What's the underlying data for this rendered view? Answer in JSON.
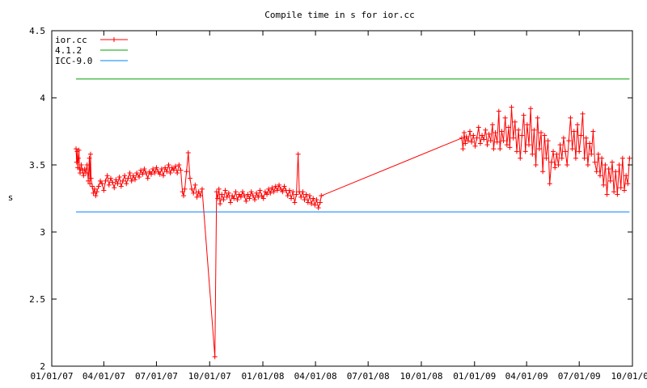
{
  "chart_data": {
    "type": "line",
    "title": "Compile time in s for ior.cc",
    "xlabel": "",
    "ylabel": "s",
    "ylim": [
      2,
      4.5
    ],
    "xlim": [
      "2007-01-01",
      "2009-10-01"
    ],
    "yticks": [
      "2",
      "2.5",
      "3",
      "3.5",
      "4",
      "4.5"
    ],
    "xticks": [
      {
        "date": "2007-01-01",
        "label": "01/01/07"
      },
      {
        "date": "2007-04-01",
        "label": "04/01/07"
      },
      {
        "date": "2007-07-01",
        "label": "07/01/07"
      },
      {
        "date": "2007-10-01",
        "label": "10/01/07"
      },
      {
        "date": "2008-01-01",
        "label": "01/01/08"
      },
      {
        "date": "2008-04-01",
        "label": "04/01/08"
      },
      {
        "date": "2008-07-01",
        "label": "07/01/08"
      },
      {
        "date": "2008-10-01",
        "label": "10/01/08"
      },
      {
        "date": "2009-01-01",
        "label": "01/01/09"
      },
      {
        "date": "2009-04-01",
        "label": "04/01/09"
      },
      {
        "date": "2009-07-01",
        "label": "07/01/09"
      },
      {
        "date": "2009-10-01",
        "label": "10/01/09"
      }
    ],
    "grid": false,
    "legend": "top-left",
    "series": [
      {
        "name": "ior.cc",
        "color": "#ff0000",
        "marker": "plus",
        "points": [
          [
            "2007-02-12",
            3.62
          ],
          [
            "2007-02-13",
            3.52
          ],
          [
            "2007-02-14",
            3.6
          ],
          [
            "2007-02-15",
            3.48
          ],
          [
            "2007-02-16",
            3.55
          ],
          [
            "2007-02-17",
            3.61
          ],
          [
            "2007-02-18",
            3.47
          ],
          [
            "2007-02-19",
            3.44
          ],
          [
            "2007-02-21",
            3.5
          ],
          [
            "2007-02-23",
            3.46
          ],
          [
            "2007-02-25",
            3.42
          ],
          [
            "2007-02-27",
            3.47
          ],
          [
            "2007-03-01",
            3.44
          ],
          [
            "2007-03-03",
            3.5
          ],
          [
            "2007-03-05",
            3.38
          ],
          [
            "2007-03-07",
            3.55
          ],
          [
            "2007-03-08",
            3.36
          ],
          [
            "2007-03-09",
            3.58
          ],
          [
            "2007-03-10",
            3.4
          ],
          [
            "2007-03-12",
            3.34
          ],
          [
            "2007-03-14",
            3.29
          ],
          [
            "2007-03-16",
            3.32
          ],
          [
            "2007-03-18",
            3.27
          ],
          [
            "2007-03-20",
            3.3
          ],
          [
            "2007-03-23",
            3.34
          ],
          [
            "2007-03-26",
            3.38
          ],
          [
            "2007-03-29",
            3.36
          ],
          [
            "2007-04-01",
            3.31
          ],
          [
            "2007-04-04",
            3.38
          ],
          [
            "2007-04-07",
            3.42
          ],
          [
            "2007-04-10",
            3.35
          ],
          [
            "2007-04-13",
            3.4
          ],
          [
            "2007-04-16",
            3.37
          ],
          [
            "2007-04-19",
            3.33
          ],
          [
            "2007-04-22",
            3.39
          ],
          [
            "2007-04-25",
            3.36
          ],
          [
            "2007-04-28",
            3.41
          ],
          [
            "2007-05-01",
            3.34
          ],
          [
            "2007-05-04",
            3.38
          ],
          [
            "2007-05-07",
            3.42
          ],
          [
            "2007-05-10",
            3.36
          ],
          [
            "2007-05-13",
            3.4
          ],
          [
            "2007-05-16",
            3.44
          ],
          [
            "2007-05-19",
            3.38
          ],
          [
            "2007-05-22",
            3.42
          ],
          [
            "2007-05-25",
            3.39
          ],
          [
            "2007-05-28",
            3.44
          ],
          [
            "2007-06-01",
            3.41
          ],
          [
            "2007-06-04",
            3.46
          ],
          [
            "2007-06-07",
            3.43
          ],
          [
            "2007-06-10",
            3.47
          ],
          [
            "2007-06-13",
            3.44
          ],
          [
            "2007-06-16",
            3.4
          ],
          [
            "2007-06-19",
            3.45
          ],
          [
            "2007-06-22",
            3.43
          ],
          [
            "2007-06-25",
            3.47
          ],
          [
            "2007-06-28",
            3.44
          ],
          [
            "2007-07-01",
            3.48
          ],
          [
            "2007-07-04",
            3.45
          ],
          [
            "2007-07-07",
            3.43
          ],
          [
            "2007-07-10",
            3.47
          ],
          [
            "2007-07-13",
            3.42
          ],
          [
            "2007-07-16",
            3.48
          ],
          [
            "2007-07-19",
            3.45
          ],
          [
            "2007-07-22",
            3.5
          ],
          [
            "2007-07-25",
            3.44
          ],
          [
            "2007-07-28",
            3.48
          ],
          [
            "2007-07-31",
            3.46
          ],
          [
            "2007-08-03",
            3.49
          ],
          [
            "2007-08-06",
            3.44
          ],
          [
            "2007-08-09",
            3.5
          ],
          [
            "2007-08-12",
            3.46
          ],
          [
            "2007-08-15",
            3.3
          ],
          [
            "2007-08-17",
            3.27
          ],
          [
            "2007-08-19",
            3.32
          ],
          [
            "2007-08-22",
            3.45
          ],
          [
            "2007-08-25",
            3.59
          ],
          [
            "2007-08-28",
            3.4
          ],
          [
            "2007-08-31",
            3.32
          ],
          [
            "2007-09-03",
            3.29
          ],
          [
            "2007-09-06",
            3.35
          ],
          [
            "2007-09-09",
            3.26
          ],
          [
            "2007-09-12",
            3.3
          ],
          [
            "2007-09-15",
            3.27
          ],
          [
            "2007-09-18",
            3.32
          ],
          [
            "2007-10-10",
            2.07
          ],
          [
            "2007-10-13",
            3.3
          ],
          [
            "2007-10-15",
            3.25
          ],
          [
            "2007-10-17",
            3.32
          ],
          [
            "2007-10-19",
            3.21
          ],
          [
            "2007-10-22",
            3.28
          ],
          [
            "2007-10-25",
            3.24
          ],
          [
            "2007-10-28",
            3.31
          ],
          [
            "2007-10-31",
            3.26
          ],
          [
            "2007-11-03",
            3.29
          ],
          [
            "2007-11-06",
            3.22
          ],
          [
            "2007-11-09",
            3.27
          ],
          [
            "2007-11-12",
            3.25
          ],
          [
            "2007-11-15",
            3.3
          ],
          [
            "2007-11-18",
            3.24
          ],
          [
            "2007-11-21",
            3.28
          ],
          [
            "2007-11-24",
            3.26
          ],
          [
            "2007-11-27",
            3.3
          ],
          [
            "2007-11-30",
            3.27
          ],
          [
            "2007-12-03",
            3.23
          ],
          [
            "2007-12-06",
            3.28
          ],
          [
            "2007-12-09",
            3.25
          ],
          [
            "2007-12-12",
            3.3
          ],
          [
            "2007-12-15",
            3.27
          ],
          [
            "2007-12-18",
            3.24
          ],
          [
            "2007-12-21",
            3.29
          ],
          [
            "2007-12-24",
            3.26
          ],
          [
            "2007-12-27",
            3.31
          ],
          [
            "2007-12-30",
            3.27
          ],
          [
            "2008-01-02",
            3.25
          ],
          [
            "2008-01-05",
            3.3
          ],
          [
            "2008-01-08",
            3.28
          ],
          [
            "2008-01-11",
            3.32
          ],
          [
            "2008-01-14",
            3.29
          ],
          [
            "2008-01-17",
            3.33
          ],
          [
            "2008-01-20",
            3.3
          ],
          [
            "2008-01-23",
            3.34
          ],
          [
            "2008-01-26",
            3.31
          ],
          [
            "2008-01-29",
            3.35
          ],
          [
            "2008-02-01",
            3.32
          ],
          [
            "2008-02-04",
            3.3
          ],
          [
            "2008-02-07",
            3.34
          ],
          [
            "2008-02-10",
            3.31
          ],
          [
            "2008-02-13",
            3.27
          ],
          [
            "2008-02-16",
            3.31
          ],
          [
            "2008-02-19",
            3.25
          ],
          [
            "2008-02-22",
            3.3
          ],
          [
            "2008-02-25",
            3.22
          ],
          [
            "2008-02-28",
            3.28
          ],
          [
            "2008-03-02",
            3.58
          ],
          [
            "2008-03-04",
            3.3
          ],
          [
            "2008-03-07",
            3.26
          ],
          [
            "2008-03-10",
            3.3
          ],
          [
            "2008-03-13",
            3.24
          ],
          [
            "2008-03-16",
            3.28
          ],
          [
            "2008-03-19",
            3.22
          ],
          [
            "2008-03-22",
            3.27
          ],
          [
            "2008-03-25",
            3.21
          ],
          [
            "2008-03-28",
            3.25
          ],
          [
            "2008-03-31",
            3.2
          ],
          [
            "2008-04-03",
            3.24
          ],
          [
            "2008-04-06",
            3.18
          ],
          [
            "2008-04-09",
            3.22
          ],
          [
            "2008-04-11",
            3.27
          ],
          [
            "2008-12-10",
            3.7
          ],
          [
            "2008-12-12",
            3.62
          ],
          [
            "2008-12-14",
            3.74
          ],
          [
            "2008-12-16",
            3.66
          ],
          [
            "2008-12-18",
            3.71
          ],
          [
            "2008-12-21",
            3.68
          ],
          [
            "2008-12-24",
            3.75
          ],
          [
            "2008-12-27",
            3.67
          ],
          [
            "2008-12-30",
            3.72
          ],
          [
            "2009-01-02",
            3.64
          ],
          [
            "2009-01-05",
            3.7
          ],
          [
            "2009-01-08",
            3.78
          ],
          [
            "2009-01-11",
            3.66
          ],
          [
            "2009-01-14",
            3.72
          ],
          [
            "2009-01-17",
            3.69
          ],
          [
            "2009-01-20",
            3.76
          ],
          [
            "2009-01-23",
            3.65
          ],
          [
            "2009-01-26",
            3.73
          ],
          [
            "2009-01-29",
            3.68
          ],
          [
            "2009-02-01",
            3.8
          ],
          [
            "2009-02-03",
            3.62
          ],
          [
            "2009-02-06",
            3.74
          ],
          [
            "2009-02-09",
            3.67
          ],
          [
            "2009-02-12",
            3.9
          ],
          [
            "2009-02-14",
            3.62
          ],
          [
            "2009-02-17",
            3.75
          ],
          [
            "2009-02-20",
            3.68
          ],
          [
            "2009-02-23",
            3.85
          ],
          [
            "2009-02-26",
            3.65
          ],
          [
            "2009-03-01",
            3.78
          ],
          [
            "2009-03-03",
            3.63
          ],
          [
            "2009-03-06",
            3.93
          ],
          [
            "2009-03-09",
            3.7
          ],
          [
            "2009-03-12",
            3.82
          ],
          [
            "2009-03-15",
            3.6
          ],
          [
            "2009-03-18",
            3.76
          ],
          [
            "2009-03-21",
            3.55
          ],
          [
            "2009-03-24",
            3.72
          ],
          [
            "2009-03-27",
            3.87
          ],
          [
            "2009-03-30",
            3.6
          ],
          [
            "2009-04-02",
            3.8
          ],
          [
            "2009-04-05",
            3.65
          ],
          [
            "2009-04-08",
            3.92
          ],
          [
            "2009-04-11",
            3.58
          ],
          [
            "2009-04-14",
            3.76
          ],
          [
            "2009-04-17",
            3.5
          ],
          [
            "2009-04-20",
            3.85
          ],
          [
            "2009-04-23",
            3.62
          ],
          [
            "2009-04-26",
            3.74
          ],
          [
            "2009-04-29",
            3.45
          ],
          [
            "2009-05-02",
            3.72
          ],
          [
            "2009-05-05",
            3.55
          ],
          [
            "2009-05-08",
            3.68
          ],
          [
            "2009-05-11",
            3.36
          ],
          [
            "2009-05-14",
            3.52
          ],
          [
            "2009-05-17",
            3.6
          ],
          [
            "2009-05-20",
            3.48
          ],
          [
            "2009-05-23",
            3.58
          ],
          [
            "2009-05-26",
            3.5
          ],
          [
            "2009-05-29",
            3.65
          ],
          [
            "2009-06-01",
            3.55
          ],
          [
            "2009-06-04",
            3.7
          ],
          [
            "2009-06-07",
            3.6
          ],
          [
            "2009-06-10",
            3.5
          ],
          [
            "2009-06-13",
            3.68
          ],
          [
            "2009-06-16",
            3.85
          ],
          [
            "2009-06-19",
            3.62
          ],
          [
            "2009-06-22",
            3.75
          ],
          [
            "2009-06-25",
            3.55
          ],
          [
            "2009-06-28",
            3.8
          ],
          [
            "2009-07-01",
            3.6
          ],
          [
            "2009-07-04",
            3.72
          ],
          [
            "2009-07-07",
            3.88
          ],
          [
            "2009-07-10",
            3.55
          ],
          [
            "2009-07-13",
            3.7
          ],
          [
            "2009-07-16",
            3.5
          ],
          [
            "2009-07-19",
            3.66
          ],
          [
            "2009-07-22",
            3.58
          ],
          [
            "2009-07-25",
            3.75
          ],
          [
            "2009-07-28",
            3.52
          ],
          [
            "2009-07-31",
            3.45
          ],
          [
            "2009-08-03",
            3.58
          ],
          [
            "2009-08-06",
            3.42
          ],
          [
            "2009-08-09",
            3.55
          ],
          [
            "2009-08-12",
            3.35
          ],
          [
            "2009-08-15",
            3.5
          ],
          [
            "2009-08-18",
            3.28
          ],
          [
            "2009-08-21",
            3.47
          ],
          [
            "2009-08-24",
            3.38
          ],
          [
            "2009-08-27",
            3.52
          ],
          [
            "2009-08-30",
            3.3
          ],
          [
            "2009-09-02",
            3.45
          ],
          [
            "2009-09-05",
            3.28
          ],
          [
            "2009-09-08",
            3.5
          ],
          [
            "2009-09-11",
            3.33
          ],
          [
            "2009-09-14",
            3.55
          ],
          [
            "2009-09-17",
            3.31
          ],
          [
            "2009-09-20",
            3.42
          ],
          [
            "2009-09-23",
            3.36
          ],
          [
            "2009-09-26",
            3.55
          ]
        ]
      },
      {
        "name": "4.1.2",
        "color": "#00a000",
        "marker": "none",
        "points": [
          [
            "2007-02-12",
            4.14
          ],
          [
            "2009-09-26",
            4.14
          ]
        ]
      },
      {
        "name": "ICC-9.0",
        "color": "#0080ff",
        "marker": "none",
        "points": [
          [
            "2007-02-12",
            3.15
          ],
          [
            "2009-09-26",
            3.15
          ]
        ]
      }
    ]
  }
}
